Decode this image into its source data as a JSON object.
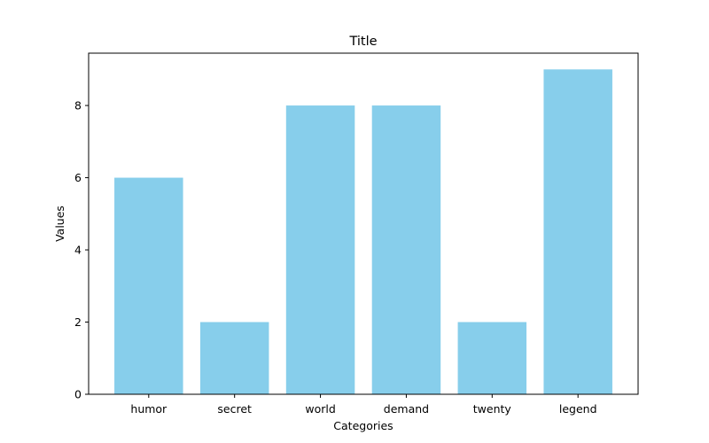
{
  "chart_data": {
    "type": "bar",
    "title": "Title",
    "xlabel": "Categories",
    "ylabel": "Values",
    "categories": [
      "humor",
      "secret",
      "world",
      "demand",
      "twenty",
      "legend"
    ],
    "values": [
      6,
      2,
      8,
      8,
      2,
      9
    ],
    "ylim": [
      0,
      9.45
    ],
    "yticks": [
      0,
      2,
      4,
      6,
      8
    ],
    "bar_color": "#87ceeb",
    "grid": false,
    "legend": "none"
  }
}
